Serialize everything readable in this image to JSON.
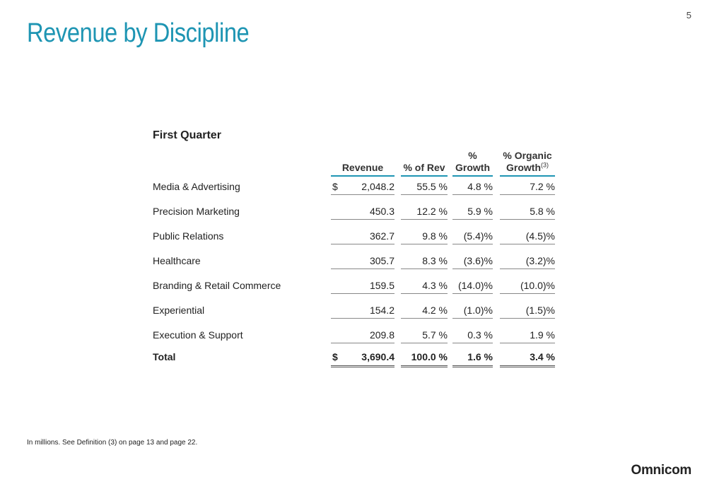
{
  "page_number": "5",
  "title": "Revenue by Discipline",
  "section_title": "First Quarter",
  "columns": {
    "revenue": "Revenue",
    "pct_rev": "% of Rev",
    "growth_line1": "%",
    "growth_line2": "Growth",
    "organic_line1": "% Organic",
    "organic_line2": "Growth",
    "organic_sup": "(3)"
  },
  "rows": [
    {
      "label": "Media & Advertising",
      "dollar": "$",
      "revenue": "2,048.2",
      "pct_rev": "55.5 %",
      "growth": "4.8 %",
      "organic": "7.2 %"
    },
    {
      "label": "Precision Marketing",
      "dollar": "",
      "revenue": "450.3",
      "pct_rev": "12.2 %",
      "growth": "5.9 %",
      "organic": "5.8 %"
    },
    {
      "label": "Public Relations",
      "dollar": "",
      "revenue": "362.7",
      "pct_rev": "9.8 %",
      "growth": "(5.4)%",
      "organic": "(4.5)%"
    },
    {
      "label": "Healthcare",
      "dollar": "",
      "revenue": "305.7",
      "pct_rev": "8.3 %",
      "growth": "(3.6)%",
      "organic": "(3.2)%"
    },
    {
      "label": "Branding & Retail Commerce",
      "dollar": "",
      "revenue": "159.5",
      "pct_rev": "4.3 %",
      "growth": "(14.0)%",
      "organic": "(10.0)%"
    },
    {
      "label": "Experiential",
      "dollar": "",
      "revenue": "154.2",
      "pct_rev": "4.2 %",
      "growth": "(1.0)%",
      "organic": "(1.5)%"
    },
    {
      "label": "Execution & Support",
      "dollar": "",
      "revenue": "209.8",
      "pct_rev": "5.7 %",
      "growth": "0.3 %",
      "organic": "1.9 %"
    }
  ],
  "total": {
    "label": "Total",
    "dollar": "$",
    "revenue": "3,690.4",
    "pct_rev": "100.0 %",
    "growth": "1.6 %",
    "organic": "3.4 %"
  },
  "footnote": "In millions.  See Definition (3) on page 13 and page 22.",
  "logo": "Omnicom",
  "colors": {
    "accent": "#1e95b3"
  }
}
